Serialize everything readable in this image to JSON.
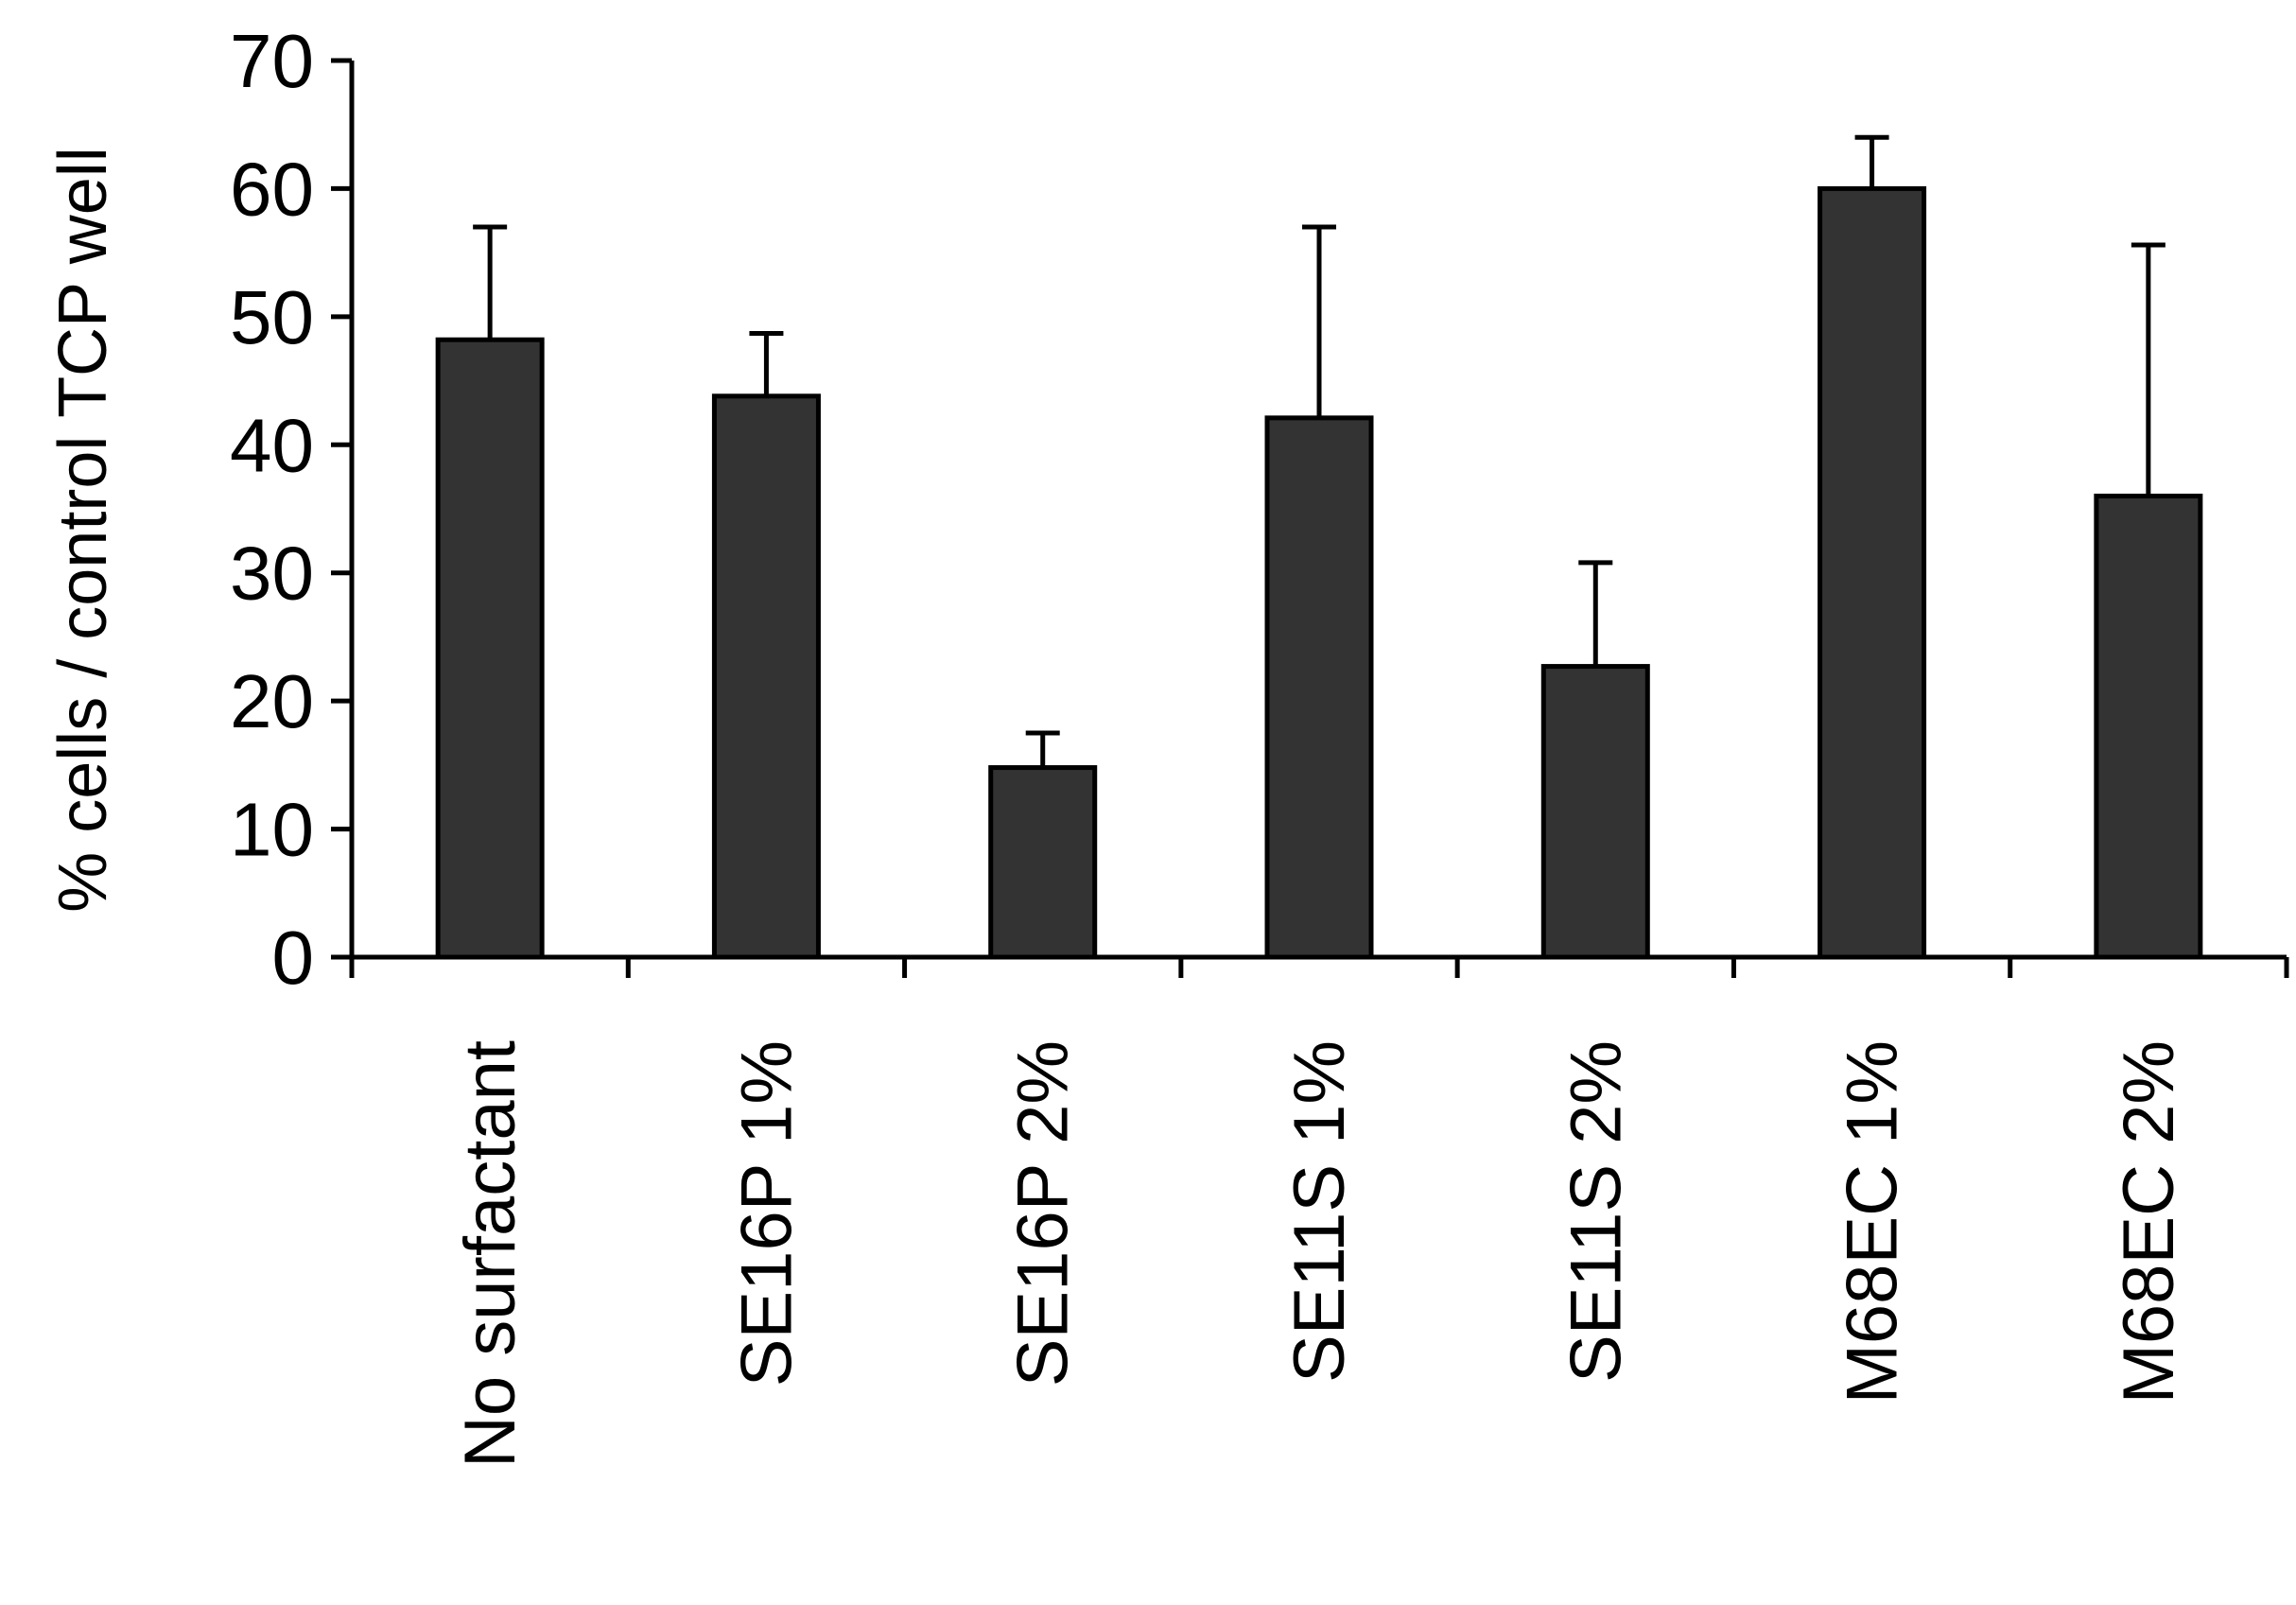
{
  "chart_data": {
    "type": "bar",
    "title": "",
    "xlabel": "",
    "ylabel": "% cells / control TCP well",
    "ylim": [
      0,
      70
    ],
    "yticks": [
      0,
      10,
      20,
      30,
      40,
      50,
      60,
      70
    ],
    "grid": false,
    "legend": "none",
    "categories": [
      "No surfactant",
      "SE16P 1%",
      "SE16P 2%",
      "SE11S 1%",
      "SE11S 2%",
      "M68EC 1%",
      "M68EC 2%"
    ],
    "values": [
      48.2,
      43.8,
      14.8,
      42.1,
      22.7,
      60.0,
      36.0
    ],
    "error_upper": [
      8.8,
      4.9,
      2.7,
      14.9,
      8.1,
      4.0,
      19.6
    ],
    "bar_color": "#333333",
    "edge_color": "#000000"
  }
}
